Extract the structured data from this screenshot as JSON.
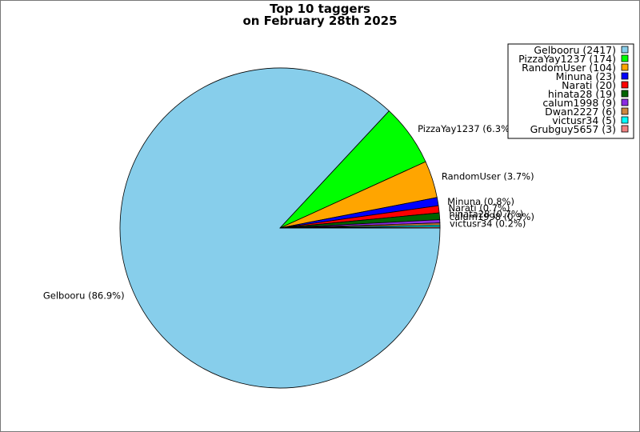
{
  "chart_data": {
    "type": "pie",
    "title_lines": [
      "Top 10 taggers",
      "on February 28th 2025"
    ],
    "legend_position": "top-right",
    "slices": [
      {
        "name": "Gelbooru",
        "value": 2417,
        "percent_label": "Gelbooru (86.9%)",
        "legend_label": "Gelbooru (2417)",
        "color": "#87ceeb"
      },
      {
        "name": "PizzaYay1237",
        "value": 174,
        "percent_label": "PizzaYay1237 (6.3%)",
        "legend_label": "PizzaYay1237 (174)",
        "color": "#00ff00"
      },
      {
        "name": "RandomUser",
        "value": 104,
        "percent_label": "RandomUser (3.7%)",
        "legend_label": "RandomUser (104)",
        "color": "#ffa500"
      },
      {
        "name": "Minuna",
        "value": 23,
        "percent_label": "Minuna (0.8%)",
        "legend_label": "Minuna (23)",
        "color": "#0000ff"
      },
      {
        "name": "Narati",
        "value": 20,
        "percent_label": "Narati (0.7%)",
        "legend_label": "Narati (20)",
        "color": "#ff0000"
      },
      {
        "name": "hinata28",
        "value": 19,
        "percent_label": "hinata28 (0.7%)",
        "legend_label": "hinata28 (19)",
        "color": "#006400"
      },
      {
        "name": "calum1998",
        "value": 9,
        "percent_label": "calum1998 (0.3%)",
        "legend_label": "calum1998 (9)",
        "color": "#8a2be2"
      },
      {
        "name": "Dwan2227",
        "value": 6,
        "percent_label": "",
        "legend_label": "Dwan2227 (6)",
        "color": "#cd853f"
      },
      {
        "name": "victusr34",
        "value": 5,
        "percent_label": "victusr34 (0.2%)",
        "legend_label": "victusr34 (5)",
        "color": "#00ffff"
      },
      {
        "name": "Grubguy5657",
        "value": 3,
        "percent_label": "",
        "legend_label": "Grubguy5657 (3)",
        "color": "#f08080"
      }
    ]
  }
}
